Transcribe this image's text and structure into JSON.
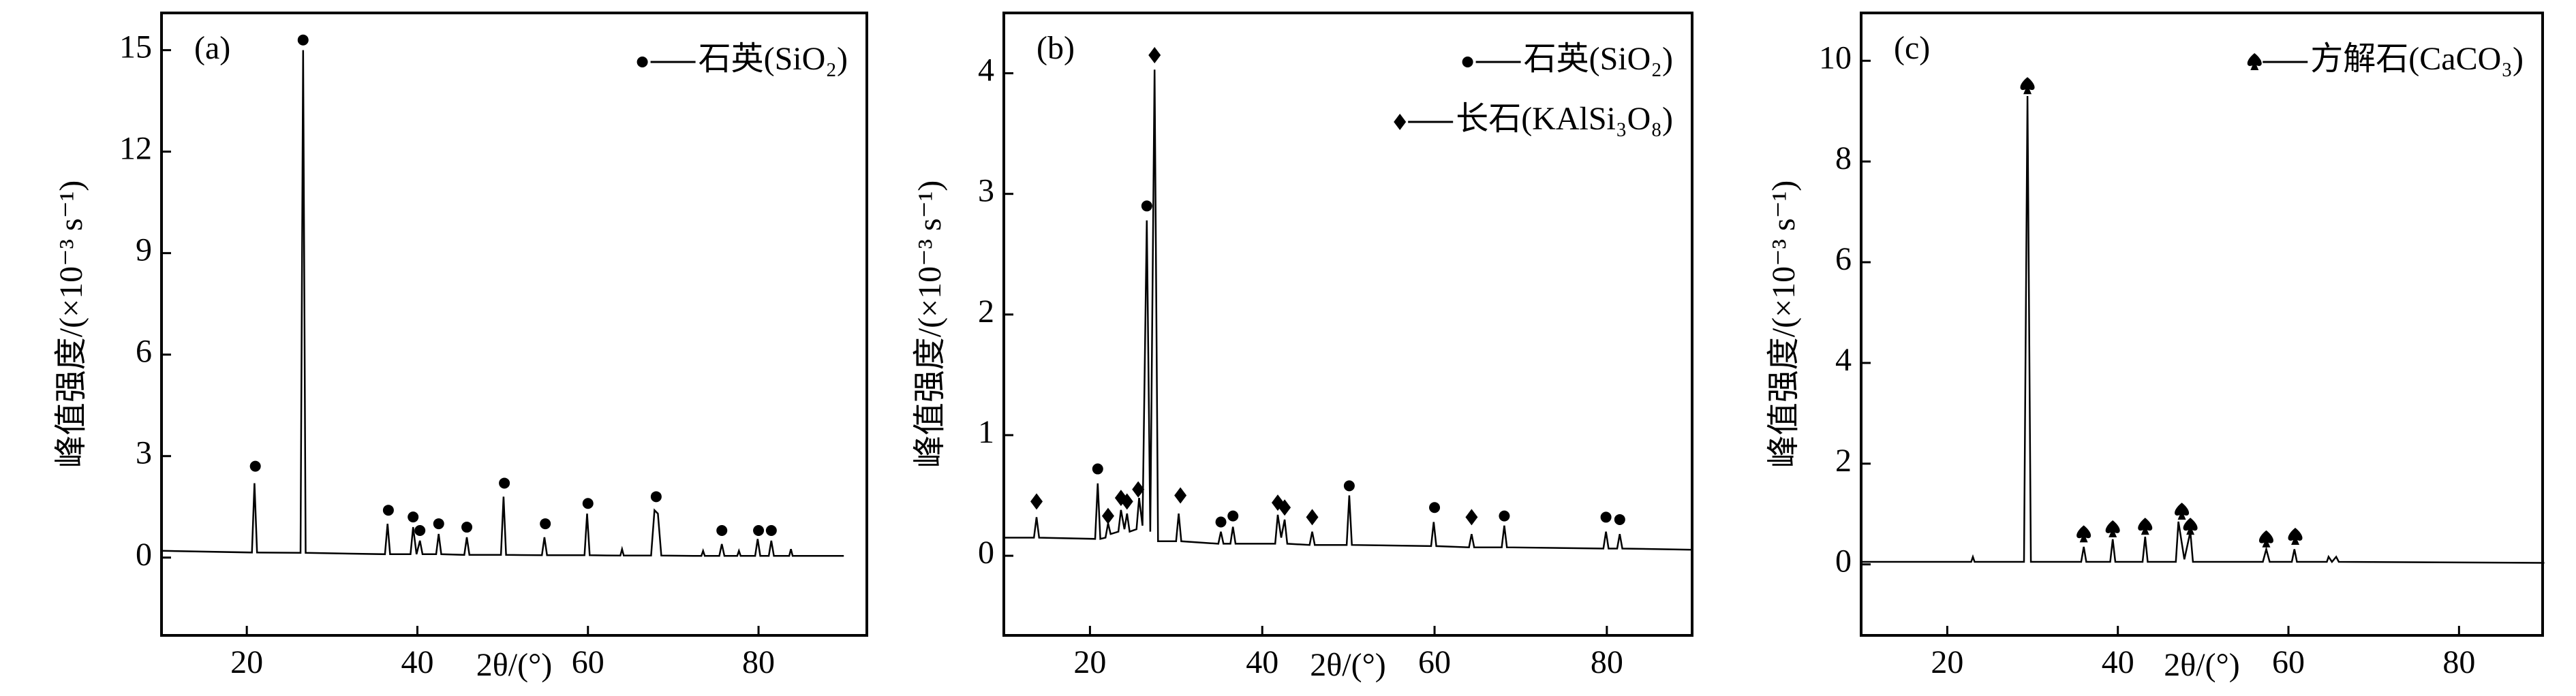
{
  "chart_data": [
    {
      "type": "line",
      "label": "(a)",
      "xlabel": "2θ/(°)",
      "ylabel": "峰值强度/(×10⁻³ s⁻¹)",
      "color": "#000000",
      "xlim": [
        10,
        92.7
      ],
      "ylim": [
        -2.3,
        16.1
      ],
      "xticks": [
        20,
        40,
        60,
        80
      ],
      "yticks": [
        0,
        3,
        6,
        9,
        12,
        15
      ],
      "legend": "upper right",
      "x": [
        10,
        20.6,
        20.9,
        21.2,
        26.3,
        26.6,
        26.9,
        36.2,
        36.5,
        36.8,
        39.2,
        39.5,
        39.9,
        40.3,
        40.6,
        42.2,
        42.5,
        42.8,
        45.5,
        45.8,
        46.1,
        49.8,
        50.1,
        50.4,
        54.6,
        54.9,
        55.2,
        59.6,
        59.9,
        60.2,
        63.8,
        64,
        64.2,
        67.4,
        67.8,
        68.2,
        68.6,
        73.3,
        73.5,
        73.7,
        75.4,
        75.7,
        76,
        77.5,
        77.7,
        77.9,
        79.6,
        79.9,
        80.2,
        81.2,
        81.5,
        81.8,
        83.6,
        83.8,
        84,
        90
      ],
      "values": [
        0.2,
        0.15,
        2.2,
        0.15,
        0.14,
        15.0,
        0.14,
        0.1,
        1.0,
        0.1,
        0.1,
        0.9,
        0.1,
        0.5,
        0.1,
        0.1,
        0.7,
        0.1,
        0.08,
        0.6,
        0.08,
        0.08,
        1.8,
        0.08,
        0.07,
        0.6,
        0.07,
        0.07,
        1.3,
        0.07,
        0.06,
        0.25,
        0.06,
        0.06,
        1.4,
        1.3,
        0.06,
        0.05,
        0.2,
        0.05,
        0.05,
        0.4,
        0.05,
        0.05,
        0.2,
        0.05,
        0.05,
        0.55,
        0.05,
        0.05,
        0.5,
        0.05,
        0.05,
        0.25,
        0.05,
        0.05
      ],
      "markers": [
        {
          "name": "石英(SiO₂)",
          "marker": "circle",
          "x": [
            21,
            26.6,
            36.6,
            39.5,
            40.3,
            42.5,
            45.8,
            50.2,
            55,
            60,
            68,
            75.7,
            80,
            81.5
          ],
          "values": [
            2.7,
            15.3,
            1.4,
            1.2,
            0.8,
            1.0,
            0.9,
            2.2,
            1.0,
            1.6,
            1.8,
            0.8,
            0.8,
            0.8
          ]
        }
      ]
    },
    {
      "type": "line",
      "label": "(b)",
      "xlabel": "2θ/(°)",
      "ylabel": "峰值强度/(×10⁻³ s⁻¹)",
      "color": "#000000",
      "xlim": [
        10,
        89.9
      ],
      "ylim": [
        -0.66,
        4.5
      ],
      "xticks": [
        20,
        40,
        60,
        80
      ],
      "yticks": [
        0,
        1,
        2,
        3,
        4
      ],
      "legend": "upper right",
      "x": [
        10,
        13.5,
        13.8,
        14.1,
        20.6,
        20.9,
        21.2,
        21.8,
        22.1,
        22.4,
        23.3,
        23.6,
        24.0,
        24.3,
        24.6,
        25.4,
        25.7,
        26.1,
        26.6,
        27.0,
        27.5,
        27.9,
        30.0,
        30.3,
        30.6,
        34.9,
        35.2,
        35.5,
        36.3,
        36.6,
        36.9,
        41.5,
        41.8,
        42.2,
        42.6,
        42.9,
        45.5,
        45.8,
        46.1,
        49.8,
        50.1,
        50.4,
        59.6,
        59.9,
        60.2,
        64.0,
        64.3,
        64.6,
        67.8,
        68.1,
        68.4,
        79.6,
        79.9,
        80.2,
        81.2,
        81.5,
        81.8,
        90
      ],
      "values": [
        0.15,
        0.15,
        0.32,
        0.15,
        0.14,
        0.6,
        0.14,
        0.15,
        0.27,
        0.18,
        0.2,
        0.38,
        0.22,
        0.35,
        0.2,
        0.22,
        0.48,
        0.25,
        2.78,
        0.2,
        4.03,
        0.12,
        0.12,
        0.35,
        0.12,
        0.1,
        0.2,
        0.1,
        0.1,
        0.24,
        0.1,
        0.1,
        0.34,
        0.15,
        0.3,
        0.1,
        0.09,
        0.2,
        0.09,
        0.09,
        0.5,
        0.09,
        0.08,
        0.28,
        0.08,
        0.07,
        0.18,
        0.07,
        0.07,
        0.25,
        0.07,
        0.06,
        0.2,
        0.06,
        0.06,
        0.18,
        0.06,
        0.05
      ],
      "markers": [
        {
          "name": "石英(SiO₂)",
          "marker": "circle",
          "x": [
            20.9,
            26.6,
            35.2,
            36.6,
            50.1,
            60,
            68.1,
            79.9,
            81.5
          ],
          "values": [
            0.72,
            2.9,
            0.28,
            0.33,
            0.58,
            0.4,
            0.33,
            0.32,
            0.3
          ]
        },
        {
          "name": "长石(KAlSi₃O₈)",
          "marker": "diamond",
          "x": [
            13.8,
            22.1,
            23.6,
            24.3,
            25.6,
            27.5,
            30.5,
            41.8,
            42.6,
            45.8,
            64.3
          ],
          "values": [
            0.45,
            0.33,
            0.48,
            0.45,
            0.55,
            4.15,
            0.5,
            0.44,
            0.4,
            0.32,
            0.32
          ]
        }
      ]
    },
    {
      "type": "line",
      "label": "(c)",
      "xlabel": "2θ/(°)",
      "ylabel": "峰值强度/(×10⁻³ s⁻¹)",
      "color": "#000000",
      "xlim": [
        9.9,
        89.8
      ],
      "ylim": [
        -1.41,
        10.95
      ],
      "xticks": [
        20,
        40,
        60,
        80
      ],
      "yticks": [
        0,
        2,
        4,
        6,
        8,
        10
      ],
      "legend": "upper right",
      "x": [
        10,
        22.8,
        23.0,
        23.2,
        29.0,
        29.4,
        29.8,
        35.7,
        36.0,
        36.3,
        39.1,
        39.4,
        39.7,
        42.9,
        43.2,
        43.5,
        46.8,
        47.1,
        47.8,
        48.5,
        48.8,
        57.0,
        57.4,
        57.8,
        60.4,
        60.7,
        61.0,
        64.5,
        64.7,
        65.1,
        65.6,
        65.9,
        90
      ],
      "values": [
        0.05,
        0.05,
        0.15,
        0.05,
        0.05,
        9.3,
        0.05,
        0.05,
        0.35,
        0.05,
        0.05,
        0.5,
        0.05,
        0.05,
        0.55,
        0.05,
        0.05,
        0.85,
        0.1,
        0.65,
        0.05,
        0.05,
        0.3,
        0.05,
        0.05,
        0.3,
        0.05,
        0.05,
        0.15,
        0.05,
        0.15,
        0.05,
        0.03
      ],
      "markers": [
        {
          "name": "方解石(CaCO₃)",
          "marker": "spade",
          "x": [
            29.4,
            36,
            39.4,
            43.2,
            47.5,
            48.5,
            57.4,
            60.8
          ],
          "values": [
            9.5,
            0.6,
            0.7,
            0.75,
            1.05,
            0.75,
            0.5,
            0.55
          ]
        }
      ]
    }
  ]
}
